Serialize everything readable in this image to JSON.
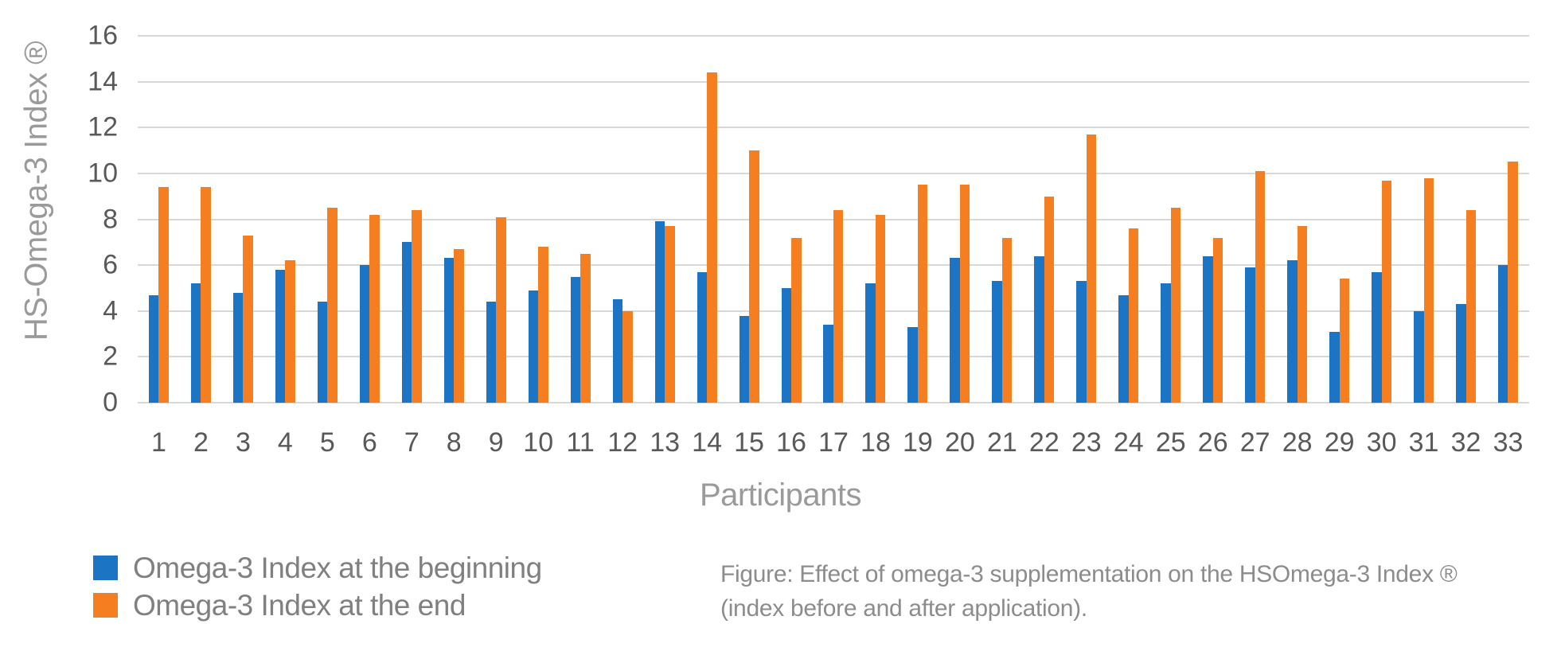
{
  "colors": {
    "series_beginning": "#1c75c4",
    "series_end": "#f57e20",
    "gridline": "#d8d8d8",
    "tick_text": "#595959",
    "axis_title_text": "#9a9a9a",
    "legend_text": "#808080",
    "caption_text": "#8c8c8c"
  },
  "y_axis": {
    "title": "HS-Omega-3 Index ®",
    "ticks": [
      0,
      2,
      4,
      6,
      8,
      10,
      12,
      14,
      16
    ]
  },
  "x_axis": {
    "title": "Participants"
  },
  "legend": {
    "items": [
      {
        "label": "Omega-3 Index at the beginning",
        "color": "#1c75c4"
      },
      {
        "label": "Omega-3 Index at the end",
        "color": "#f57e20"
      }
    ]
  },
  "caption": {
    "line1": "Figure: Effect of omega-3 supplementation on the HSOmega-3 Index ®",
    "line2": "(index before and after application)."
  },
  "chart_data": {
    "type": "bar",
    "title": "",
    "xlabel": "Participants",
    "ylabel": "HS-Omega-3 Index ®",
    "ylim": [
      0,
      16
    ],
    "ytick_step": 2,
    "grid": true,
    "legend_position": "bottom-left",
    "categories": [
      1,
      2,
      3,
      4,
      5,
      6,
      7,
      8,
      9,
      10,
      11,
      12,
      13,
      14,
      15,
      16,
      17,
      18,
      19,
      20,
      21,
      22,
      23,
      24,
      25,
      26,
      27,
      28,
      29,
      30,
      31,
      32,
      33
    ],
    "series": [
      {
        "name": "Omega-3 Index at the beginning",
        "color": "#1c75c4",
        "values": [
          4.7,
          5.2,
          4.8,
          5.8,
          4.4,
          6.0,
          7.0,
          6.3,
          4.4,
          4.9,
          5.5,
          4.5,
          7.9,
          5.7,
          3.8,
          5.0,
          3.4,
          5.2,
          3.3,
          6.3,
          5.3,
          6.4,
          5.3,
          4.7,
          5.2,
          6.4,
          5.9,
          6.2,
          3.1,
          5.7,
          4.0,
          4.3,
          6.0
        ]
      },
      {
        "name": "Omega-3 Index at the end",
        "color": "#f57e20",
        "values": [
          9.4,
          9.4,
          7.3,
          6.2,
          8.5,
          8.2,
          8.4,
          6.7,
          8.1,
          6.8,
          6.5,
          4.0,
          7.7,
          14.4,
          11.0,
          7.2,
          8.4,
          8.2,
          9.5,
          9.5,
          7.2,
          9.0,
          11.7,
          7.6,
          8.5,
          7.2,
          10.1,
          7.7,
          5.4,
          9.7,
          9.8,
          8.4,
          10.5
        ]
      }
    ]
  }
}
